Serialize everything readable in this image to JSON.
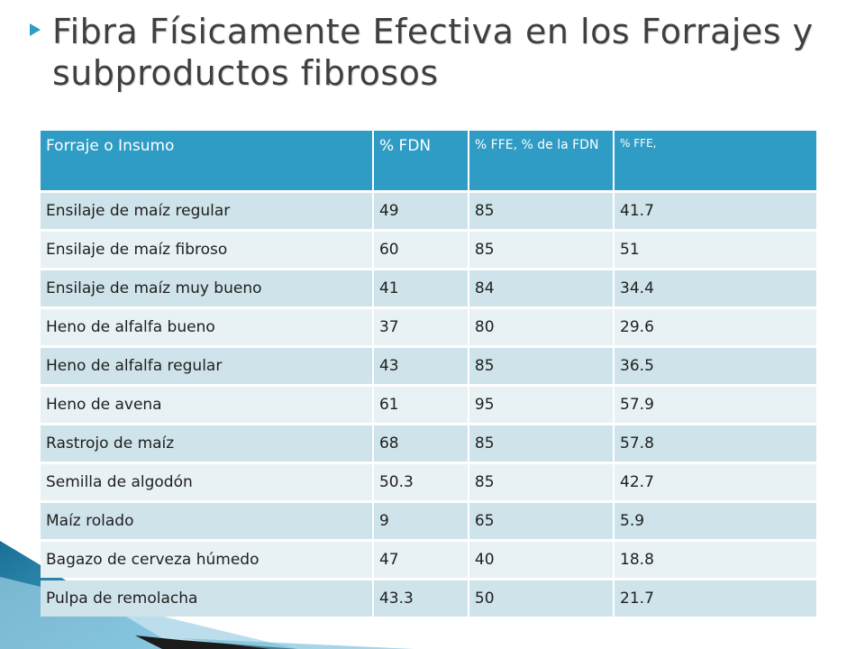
{
  "slide": {
    "title": "Fibra Físicamente Efectiva en los Forrajes y subproductos fibrosos"
  },
  "table": {
    "headers": [
      "Forraje o Insumo",
      "% FDN",
      "% FFE, % de la FDN",
      "% FFE,"
    ],
    "rows": [
      [
        "Ensilaje de maíz regular",
        "49",
        "85",
        "41.7"
      ],
      [
        "Ensilaje de maíz fibroso",
        "60",
        "85",
        "51"
      ],
      [
        "Ensilaje de maíz muy bueno",
        "41",
        "84",
        "34.4"
      ],
      [
        "Heno de alfalfa bueno",
        "37",
        "80",
        "29.6"
      ],
      [
        "Heno de alfalfa regular",
        "43",
        "85",
        "36.5"
      ],
      [
        "Heno de avena",
        "61",
        "95",
        "57.9"
      ],
      [
        "Rastrojo de maíz",
        "68",
        "85",
        "57.8"
      ],
      [
        "Semilla de algodón",
        "50.3",
        "85",
        "42.7"
      ],
      [
        "Maíz  rolado",
        "9",
        "65",
        "5.9"
      ],
      [
        "Bagazo de cerveza húmedo",
        "47",
        "40",
        "18.8"
      ],
      [
        "Pulpa de remolacha",
        "43.3",
        "50",
        "21.7"
      ]
    ]
  },
  "colors": {
    "accent": "#2e9cc5",
    "row_dark": "#cfe3ea",
    "row_light": "#e8f1f4",
    "title_text": "#3f3f3f"
  }
}
